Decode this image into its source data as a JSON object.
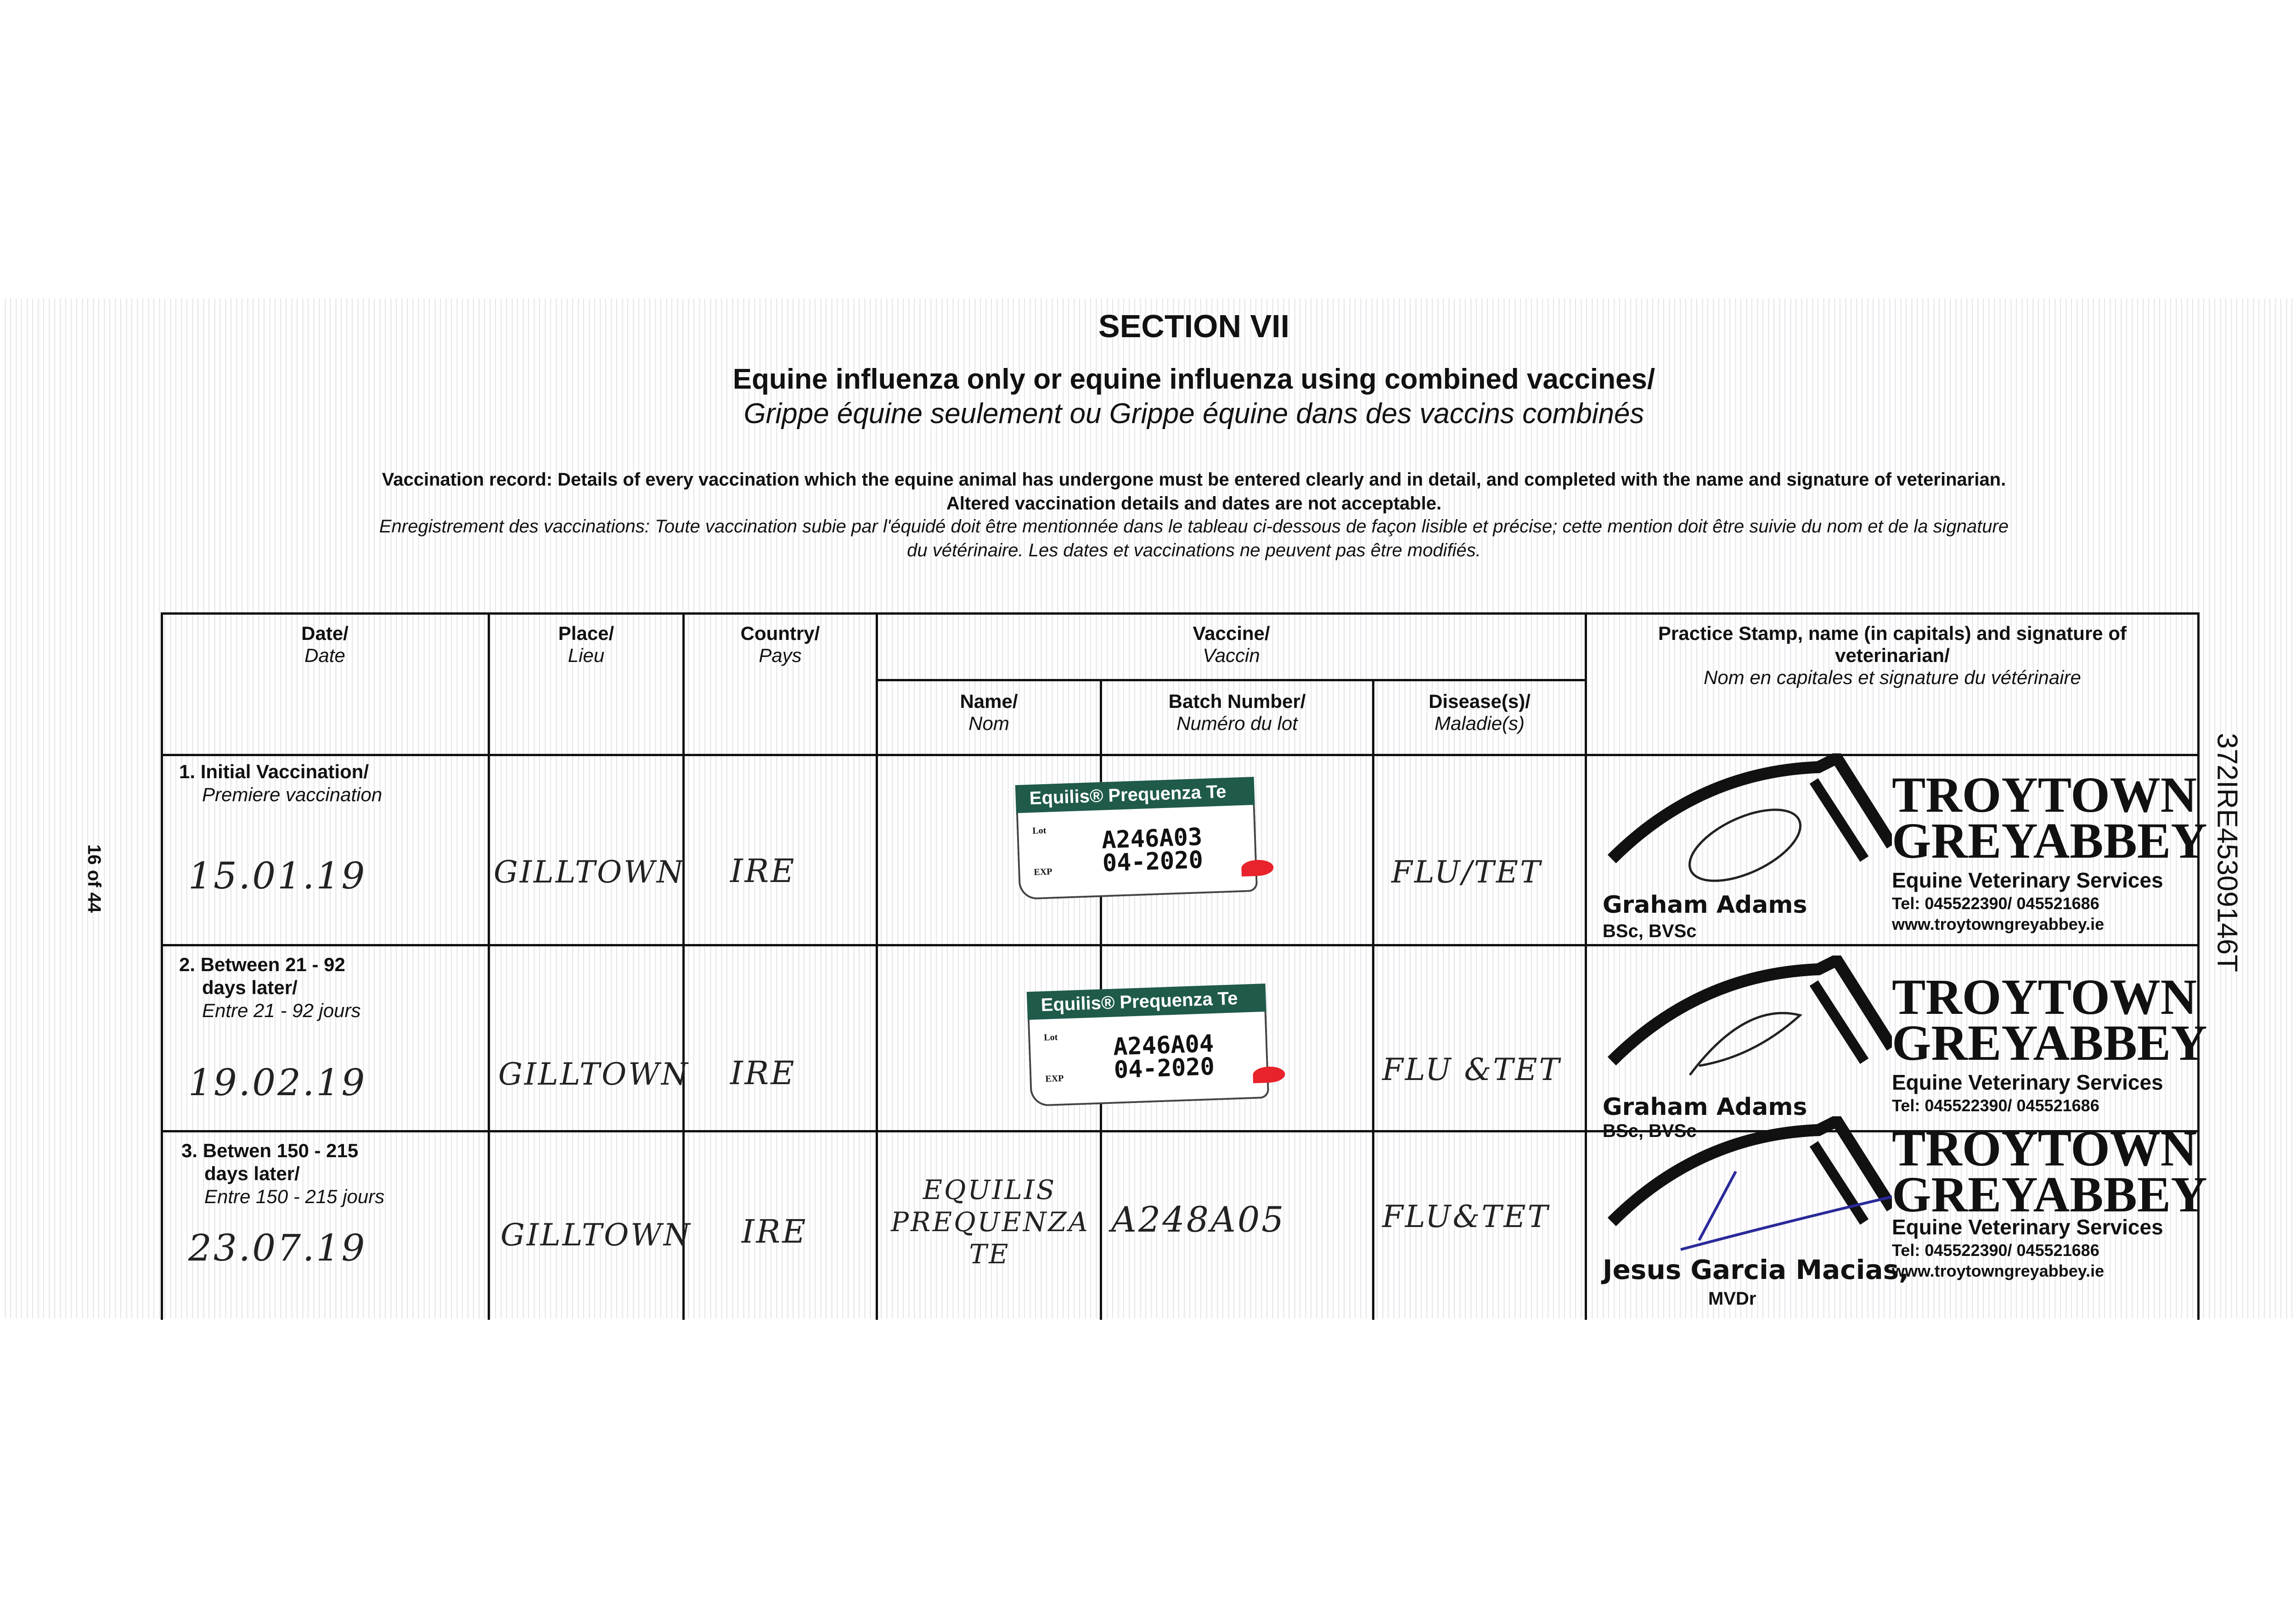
{
  "header": {
    "section": "SECTION VII",
    "title_en": "Equine influenza only or equine influenza using combined vaccines/",
    "title_fr": "Grippe équine seulement ou Grippe équine dans des vaccins combinés"
  },
  "instructions": {
    "en_line1": "Vaccination record: Details of every vaccination which the equine animal has undergone must be entered clearly and in detail, and completed with the name and signature of veterinarian.",
    "en_line2": "Altered vaccination details and dates are not acceptable.",
    "fr_line1": "Enregistrement des vaccinations: Toute vaccination subie par l'équidé doit être mentionnée dans le tableau ci-dessous de façon lisible et précise; cette mention doit être suivie du nom et de la signature",
    "fr_line2": "du vétérinaire. Les dates et vaccinations ne peuvent pas être modifiés."
  },
  "columns": {
    "date": {
      "en": "Date/",
      "fr": "Date"
    },
    "place": {
      "en": "Place/",
      "fr": "Lieu"
    },
    "country": {
      "en": "Country/",
      "fr": "Pays"
    },
    "vaccine": {
      "en": "Vaccine/",
      "fr": "Vaccin"
    },
    "name": {
      "en": "Name/",
      "fr": "Nom"
    },
    "batch": {
      "en": "Batch Number/",
      "fr": "Numéro du lot"
    },
    "disease": {
      "en": "Disease(s)/",
      "fr": "Maladie(s)"
    },
    "stamp": {
      "en1": "Practice Stamp, name (in capitals) and signature of",
      "en2": "veterinarian/",
      "fr": "Nom en capitales et signature du vétérinaire"
    }
  },
  "rows": [
    {
      "label1": "1. Initial Vaccination/",
      "label_fr": "Premiere vaccination",
      "date": "15.01.19",
      "place": "GILLTOWN",
      "country": "IRE",
      "label": {
        "product": "Equilis® Prequenza Te",
        "lot_key": "Lot",
        "exp_key": "EXP",
        "lot": "A246A03",
        "exp": "04-2020"
      },
      "disease": "FLU/TET",
      "vet": "Graham Adams",
      "qual": "BSc, BVSc"
    },
    {
      "label1": "2. Between 21 - 92",
      "label2": "days later/",
      "label_fr": "Entre 21 - 92 jours",
      "date": "19.02.19",
      "place": "GILLTOWN",
      "country": "IRE",
      "label": {
        "product": "Equilis® Prequenza Te",
        "lot_key": "Lot",
        "exp_key": "EXP",
        "lot": "A246A04",
        "exp": "04-2020"
      },
      "disease": "FLU &TET",
      "vet": "Graham Adams",
      "qual": "BSc, BVSc"
    },
    {
      "label1": "3. Betwen 150 - 215",
      "label2": "days later/",
      "label_fr": "Entre 150 - 215 jours",
      "date": "23.07.19",
      "place": "GILLTOWN",
      "country": "IRE",
      "name": "EQUILIS PREQUENZA TE",
      "batch": "A248A05",
      "disease": "FLU&TET",
      "vet": "Jesus Garcia Macias,",
      "qual": "MVDr"
    }
  ],
  "stamp": {
    "line1": "TROYTOWN",
    "line2": "GREYABBEY",
    "line3": "Equine Veterinary Services",
    "tel": "Tel: 045522390/ 045521686",
    "web": "www.troytowngreyabbey.ie"
  },
  "margin": {
    "page": "16 of 44",
    "id": "372IRE45309146T"
  }
}
